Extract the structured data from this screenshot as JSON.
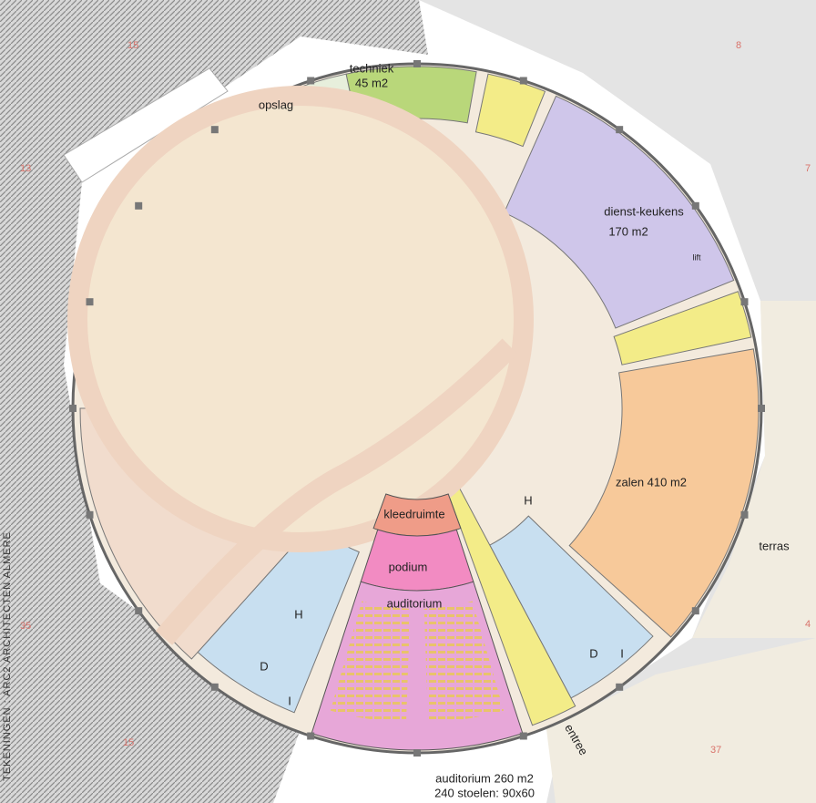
{
  "rooms": {
    "techniek": "techniek",
    "techniek_area": "45 m2",
    "opslag": "opslag",
    "dienst_keukens": "dienst-keukens",
    "dienst_keukens_area": "170 m2",
    "lift": "lift",
    "zalen": "zalen 410 m2",
    "terras": "terras",
    "kleedruimte": "kleedruimte",
    "podium": "podium",
    "auditorium": "auditorium",
    "entree": "entree",
    "h_left": "H",
    "d_left": "D",
    "i_left": "I",
    "h_right": "H",
    "d_right": "D",
    "i_right": "I"
  },
  "caption": {
    "line1": "auditorium 260 m2",
    "line2": "240 stoelen: 90x60"
  },
  "credit": "TEKENINGEN : ARC2 ARCHITECTEN ALMERE",
  "grid_labels": [
    "15",
    "13",
    "8",
    "7",
    "4",
    "37",
    "15",
    "35"
  ]
}
